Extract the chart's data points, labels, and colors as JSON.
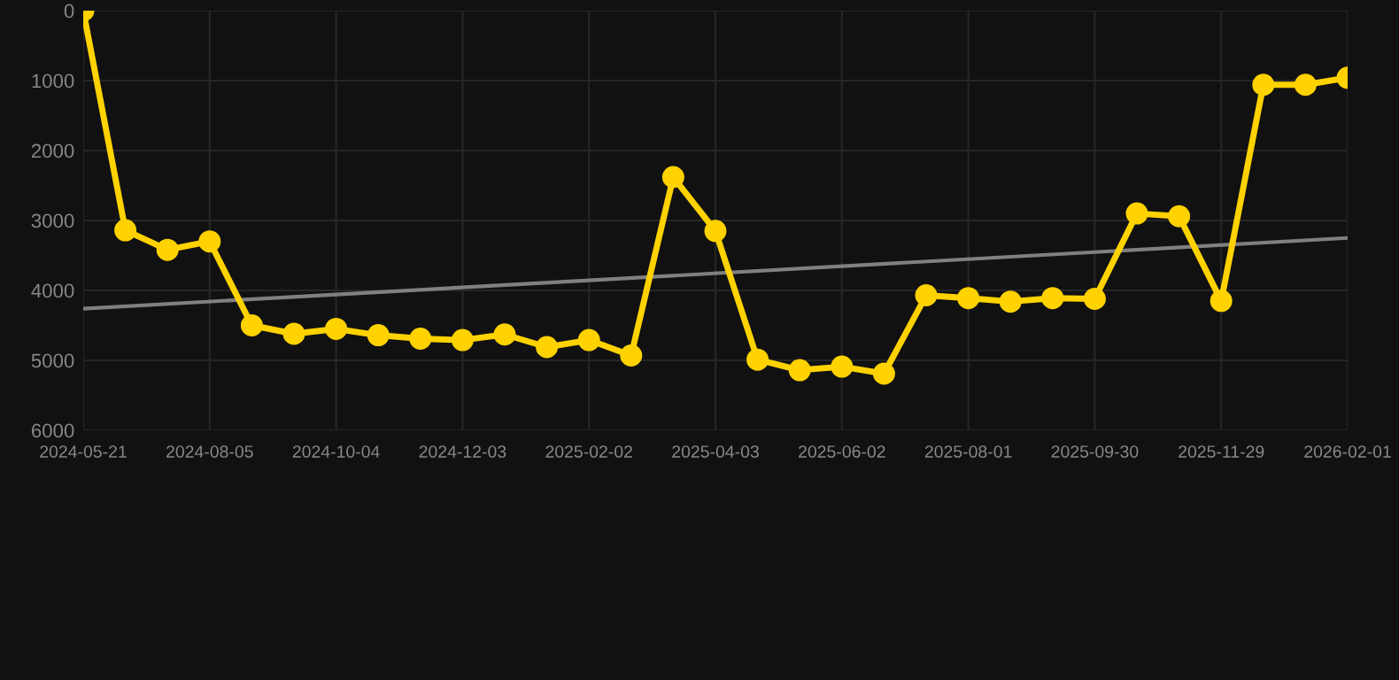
{
  "chart_data": {
    "type": "line",
    "categories": [
      "2024-05-21",
      null,
      null,
      "2024-08-05",
      null,
      null,
      "2024-10-04",
      null,
      null,
      "2024-12-03",
      null,
      null,
      "2025-02-02",
      null,
      null,
      "2025-04-03",
      null,
      null,
      "2025-06-02",
      null,
      null,
      "2025-08-01",
      null,
      null,
      "2025-09-30",
      null,
      null,
      "2025-11-29",
      null,
      null,
      "2026-02-01"
    ],
    "series": [
      {
        "color": "#ffd200",
        "marker": "circle",
        "values": [
          0,
          3140,
          3420,
          3300,
          4500,
          4620,
          4550,
          4640,
          4690,
          4710,
          4630,
          4810,
          4710,
          4930,
          2380,
          3150,
          4990,
          5140,
          5090,
          5190,
          4070,
          4110,
          4160,
          4110,
          4120,
          2900,
          2940,
          4150,
          1060,
          1060,
          960
        ]
      },
      {
        "color": "#808080",
        "marker": "none",
        "values": [
          4260,
          null,
          null,
          null,
          null,
          null,
          null,
          null,
          null,
          null,
          null,
          null,
          null,
          null,
          null,
          null,
          null,
          null,
          null,
          null,
          null,
          null,
          null,
          null,
          null,
          null,
          null,
          null,
          null,
          null,
          3250
        ]
      }
    ],
    "ylim": [
      6000,
      0
    ],
    "yticks": [
      0,
      1000,
      2000,
      3000,
      4000,
      5000,
      6000
    ],
    "grid": true
  }
}
